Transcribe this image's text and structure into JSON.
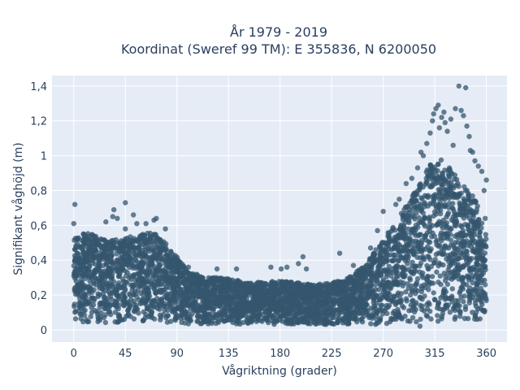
{
  "chart_data": {
    "type": "scatter",
    "title_line1": "År 1979 - 2019",
    "title_line2": "Koordinat (Sweref 99 TM): E 355836, N 6200050",
    "xlabel": "Vågriktning (grader)",
    "ylabel": "Signifikant våghöjd (m)",
    "xlim": [
      -19,
      378
    ],
    "ylim": [
      -0.07,
      1.46
    ],
    "x_ticks": [
      0,
      45,
      90,
      135,
      180,
      225,
      270,
      315,
      360
    ],
    "x_tick_labels": [
      "0",
      "45",
      "90",
      "135",
      "180",
      "225",
      "270",
      "315",
      "360"
    ],
    "y_ticks": [
      0,
      0.2,
      0.4,
      0.6,
      0.8,
      1.0,
      1.2,
      1.4
    ],
    "y_tick_labels": [
      "0",
      "0,2",
      "0,4",
      "0,6",
      "0,8",
      "1",
      "1,2",
      "1,4"
    ],
    "grid": true,
    "marker_color": "#34566e",
    "background_color": "#e5ecf6",
    "envelope": {
      "x": [
        0,
        5,
        15,
        30,
        45,
        60,
        70,
        80,
        90,
        100,
        120,
        135,
        150,
        180,
        210,
        225,
        240,
        255,
        270,
        285,
        300,
        310,
        315,
        320,
        330,
        340,
        350,
        360
      ],
      "y_min": [
        0.04,
        0.04,
        0.04,
        0.04,
        0.04,
        0.04,
        0.04,
        0.04,
        0.04,
        0.03,
        0.03,
        0.03,
        0.03,
        0.03,
        0.03,
        0.03,
        0.03,
        0.03,
        0.03,
        0.02,
        0.02,
        0.02,
        0.02,
        0.03,
        0.04,
        0.05,
        0.05,
        0.05
      ],
      "y_max": [
        0.52,
        0.56,
        0.55,
        0.52,
        0.53,
        0.55,
        0.56,
        0.5,
        0.42,
        0.33,
        0.3,
        0.3,
        0.27,
        0.28,
        0.26,
        0.27,
        0.3,
        0.38,
        0.52,
        0.66,
        0.82,
        0.94,
        0.98,
        0.98,
        0.92,
        0.83,
        0.76,
        0.54
      ]
    },
    "outliers": [
      {
        "x": 1,
        "y": 0.72
      },
      {
        "x": 0,
        "y": 0.61
      },
      {
        "x": 28,
        "y": 0.62
      },
      {
        "x": 34,
        "y": 0.65
      },
      {
        "x": 35,
        "y": 0.69
      },
      {
        "x": 38,
        "y": 0.64
      },
      {
        "x": 45,
        "y": 0.58
      },
      {
        "x": 45,
        "y": 0.73
      },
      {
        "x": 52,
        "y": 0.66
      },
      {
        "x": 55,
        "y": 0.61
      },
      {
        "x": 63,
        "y": 0.61
      },
      {
        "x": 70,
        "y": 0.63
      },
      {
        "x": 72,
        "y": 0.64
      },
      {
        "x": 80,
        "y": 0.58
      },
      {
        "x": 100,
        "y": 0.36
      },
      {
        "x": 125,
        "y": 0.35
      },
      {
        "x": 142,
        "y": 0.35
      },
      {
        "x": 172,
        "y": 0.36
      },
      {
        "x": 181,
        "y": 0.35
      },
      {
        "x": 186,
        "y": 0.36
      },
      {
        "x": 196,
        "y": 0.38
      },
      {
        "x": 200,
        "y": 0.42
      },
      {
        "x": 203,
        "y": 0.35
      },
      {
        "x": 232,
        "y": 0.44
      },
      {
        "x": 244,
        "y": 0.37
      },
      {
        "x": 259,
        "y": 0.47
      },
      {
        "x": 265,
        "y": 0.57
      },
      {
        "x": 270,
        "y": 0.68
      },
      {
        "x": 281,
        "y": 0.72
      },
      {
        "x": 284,
        "y": 0.75
      },
      {
        "x": 290,
        "y": 0.84
      },
      {
        "x": 295,
        "y": 0.87
      },
      {
        "x": 300,
        "y": 0.93
      },
      {
        "x": 303,
        "y": 1.02
      },
      {
        "x": 305,
        "y": 1.0
      },
      {
        "x": 308,
        "y": 1.07
      },
      {
        "x": 311,
        "y": 1.13
      },
      {
        "x": 313,
        "y": 1.2
      },
      {
        "x": 314,
        "y": 1.24
      },
      {
        "x": 316,
        "y": 1.27
      },
      {
        "x": 318,
        "y": 1.29
      },
      {
        "x": 319,
        "y": 1.16
      },
      {
        "x": 321,
        "y": 1.22
      },
      {
        "x": 323,
        "y": 1.25
      },
      {
        "x": 324,
        "y": 1.19
      },
      {
        "x": 326,
        "y": 1.14
      },
      {
        "x": 329,
        "y": 1.21
      },
      {
        "x": 331,
        "y": 1.06
      },
      {
        "x": 333,
        "y": 1.27
      },
      {
        "x": 336,
        "y": 1.4
      },
      {
        "x": 338,
        "y": 1.26
      },
      {
        "x": 340,
        "y": 1.23
      },
      {
        "x": 342,
        "y": 1.39
      },
      {
        "x": 343,
        "y": 1.17
      },
      {
        "x": 345,
        "y": 1.11
      },
      {
        "x": 346,
        "y": 1.03
      },
      {
        "x": 348,
        "y": 1.02
      },
      {
        "x": 350,
        "y": 0.97
      },
      {
        "x": 353,
        "y": 0.94
      },
      {
        "x": 356,
        "y": 0.91
      },
      {
        "x": 358,
        "y": 0.8
      },
      {
        "x": 360,
        "y": 0.86
      },
      {
        "x": 359,
        "y": 0.64
      }
    ]
  }
}
